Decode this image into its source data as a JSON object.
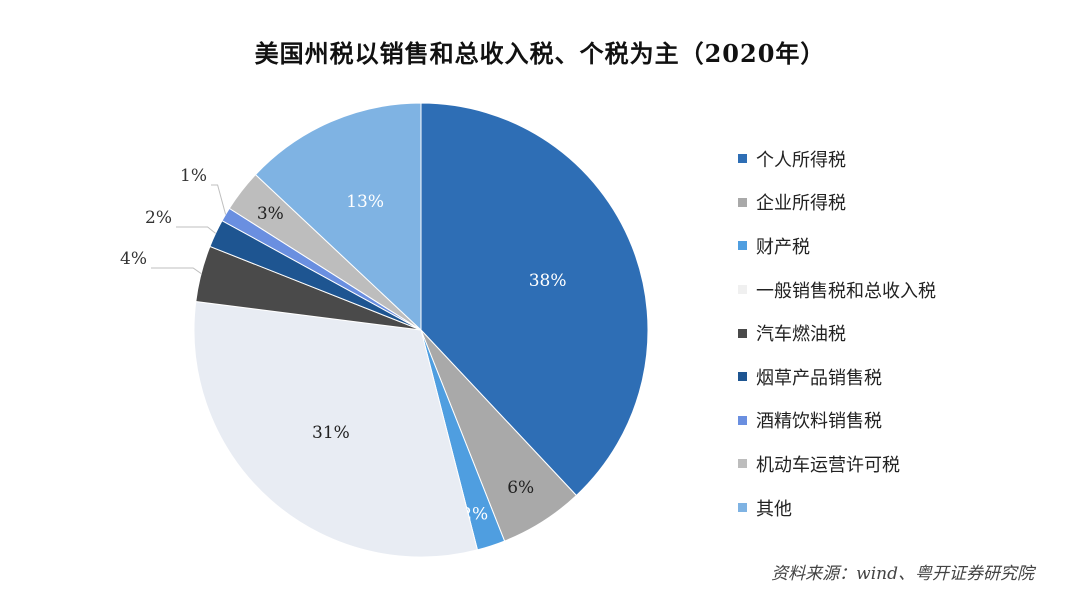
{
  "chart_data": {
    "type": "pie",
    "title": "美国州税以销售和总收入税、个税为主（2020年）",
    "slices": [
      {
        "name": "个人所得税",
        "value": 38,
        "label": "38%",
        "color": "#2E6EB5"
      },
      {
        "name": "企业所得税",
        "value": 6,
        "label": "6%",
        "color": "#A9A9A9"
      },
      {
        "name": "财产税",
        "value": 2,
        "label": "2%",
        "color": "#4F9EE0"
      },
      {
        "name": "一般销售税和总收入税",
        "value": 31,
        "label": "31%",
        "color": "#E8ECF3"
      },
      {
        "name": "汽车燃油税",
        "value": 4,
        "label": "4%",
        "color": "#4A4A4A"
      },
      {
        "name": "烟草产品销售税",
        "value": 2,
        "label": "2%",
        "color": "#1E5591"
      },
      {
        "name": "酒精饮料销售税",
        "value": 1,
        "label": "1%",
        "color": "#6A8FE0"
      },
      {
        "name": "机动车运营许可税",
        "value": 3,
        "label": "3%",
        "color": "#BDBDBD"
      },
      {
        "name": "其他",
        "value": 13,
        "label": "13%",
        "color": "#7FB3E3"
      }
    ],
    "legend_position": "right"
  },
  "source": "资料来源：wind、粤开证券研究院"
}
